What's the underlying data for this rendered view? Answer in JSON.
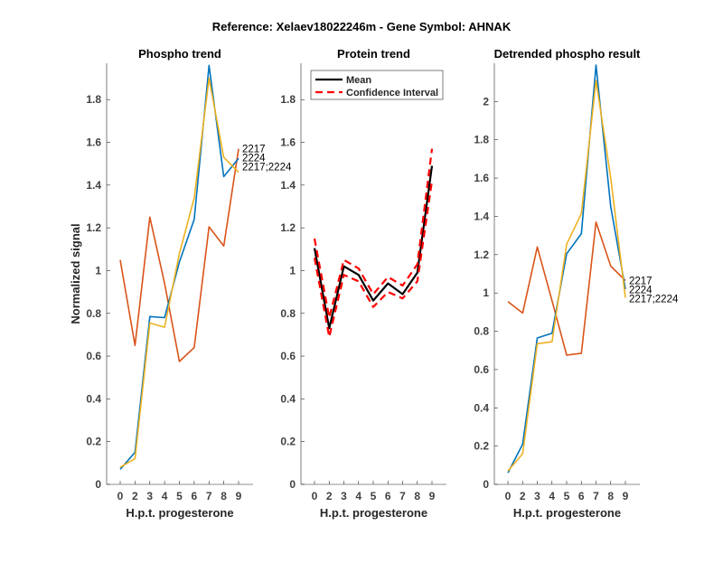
{
  "title": "Reference:  Xelaev18022246m - Gene Symbol:  AHNAK",
  "chart_data": [
    {
      "type": "line",
      "title": "Phospho trend",
      "xlabel": "H.p.t. progesterone",
      "ylabel": "Normalized signal",
      "categories": [
        "0",
        "2",
        "3",
        "4",
        "5",
        "6",
        "7",
        "8",
        "9"
      ],
      "ylim": [
        0,
        1.97
      ],
      "yticks": [
        "0",
        "0.2",
        "0.4",
        "0.6",
        "0.8",
        "1",
        "1.2",
        "1.4",
        "1.6",
        "1.8"
      ],
      "series": [
        {
          "name": "2217",
          "color": "#D95319",
          "values": [
            1.05,
            0.65,
            1.25,
            0.94,
            0.575,
            0.64,
            1.205,
            1.115,
            1.57
          ]
        },
        {
          "name": "2224",
          "color": "#0072BD",
          "values": [
            0.07,
            0.15,
            0.785,
            0.78,
            1.04,
            1.24,
            1.96,
            1.44,
            1.525
          ]
        },
        {
          "name": "2217;2224",
          "color": "#EDB120",
          "values": [
            0.08,
            0.12,
            0.755,
            0.735,
            1.08,
            1.34,
            1.9,
            1.53,
            1.46
          ]
        }
      ],
      "end_labels": [
        "2217",
        "2224",
        "2217;2224"
      ]
    },
    {
      "type": "line",
      "title": "Protein trend",
      "xlabel": "H.p.t. progesterone",
      "ylabel": "",
      "categories": [
        "0",
        "2",
        "3",
        "4",
        "5",
        "6",
        "7",
        "8",
        "9"
      ],
      "ylim": [
        0,
        1.97
      ],
      "yticks": [
        "0",
        "0.2",
        "0.4",
        "0.6",
        "0.8",
        "1",
        "1.2",
        "1.4",
        "1.6",
        "1.8"
      ],
      "series": [
        {
          "name": "Mean",
          "color": "#000000",
          "style": "solid",
          "values": [
            1.105,
            0.73,
            1.02,
            0.98,
            0.86,
            0.94,
            0.89,
            0.99,
            1.49
          ]
        },
        {
          "name": "Confidence Interval",
          "color": "#FF0000",
          "style": "dashed",
          "values": [
            1.15,
            0.78,
            1.05,
            1.01,
            0.89,
            0.97,
            0.93,
            1.03,
            1.57
          ]
        },
        {
          "name": "Confidence Interval (lower)",
          "color": "#FF0000",
          "style": "dashed",
          "values": [
            1.06,
            0.69,
            0.98,
            0.95,
            0.83,
            0.9,
            0.87,
            0.95,
            1.42
          ]
        }
      ],
      "legend": {
        "placement": "top-left",
        "entries": [
          "Mean",
          "Confidence Interval"
        ]
      }
    },
    {
      "type": "line",
      "title": "Detrended phospho result",
      "xlabel": "H.p.t. progesterone",
      "ylabel": "",
      "categories": [
        "0",
        "2",
        "3",
        "4",
        "5",
        "6",
        "7",
        "8",
        "9"
      ],
      "ylim": [
        0,
        2.2
      ],
      "yticks": [
        "0",
        "0.2",
        "0.4",
        "0.6",
        "0.8",
        "1",
        "1.2",
        "1.4",
        "1.6",
        "1.8",
        "2"
      ],
      "series": [
        {
          "name": "2217",
          "color": "#D95319",
          "values": [
            0.955,
            0.895,
            1.24,
            0.96,
            0.675,
            0.685,
            1.37,
            1.14,
            1.065
          ]
        },
        {
          "name": "2224",
          "color": "#0072BD",
          "values": [
            0.06,
            0.21,
            0.765,
            0.79,
            1.205,
            1.31,
            2.19,
            1.45,
            1.02
          ]
        },
        {
          "name": "2217;2224",
          "color": "#EDB120",
          "values": [
            0.07,
            0.16,
            0.735,
            0.745,
            1.255,
            1.415,
            2.11,
            1.6,
            0.975
          ]
        }
      ],
      "end_labels": [
        "2217",
        "2224",
        "2217;2224"
      ]
    }
  ]
}
